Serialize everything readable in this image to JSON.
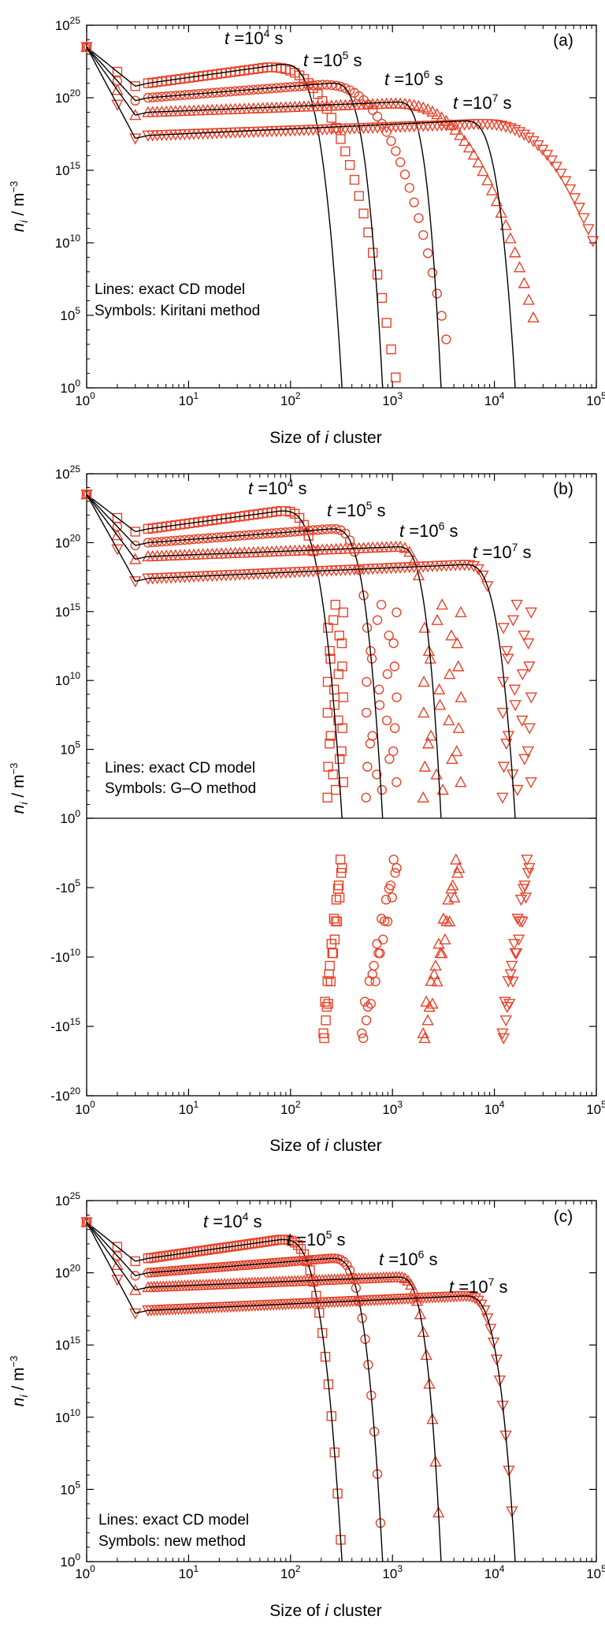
{
  "chart_data": [
    {
      "panel": "(a)",
      "type": "line+scatter",
      "xscale": "log",
      "yscale": "log",
      "xlim": [
        1,
        100000
      ],
      "ylim": [
        1,
        1e+25
      ],
      "xlabel_pre": "Size of ",
      "xlabel_var": "i",
      "xlabel_post": " cluster",
      "ylabel_var": "n",
      "ylabel_sub": "i",
      "ylabel_unit": " / m",
      "ylabel_exp": "−3",
      "xticks": [
        {
          "base": "10",
          "exp": "0"
        },
        {
          "base": "10",
          "exp": "1"
        },
        {
          "base": "10",
          "exp": "2"
        },
        {
          "base": "10",
          "exp": "3"
        },
        {
          "base": "10",
          "exp": "4"
        },
        {
          "base": "10",
          "exp": "5"
        }
      ],
      "yticks": [
        {
          "base": "10",
          "exp": "0"
        },
        {
          "base": "10",
          "exp": "5"
        },
        {
          "base": "10",
          "exp": "10"
        },
        {
          "base": "10",
          "exp": "15"
        },
        {
          "base": "10",
          "exp": "20"
        },
        {
          "base": "10",
          "exp": "25"
        }
      ],
      "annotation_lines": [
        "Lines: exact CD model",
        "Symbols: Kiritani method"
      ],
      "series": [
        {
          "time": {
            "t": "t",
            "eq": " =10",
            "exp": "4",
            "unit": " s"
          },
          "marker": "square",
          "exact": {
            "log_n0": 23.5,
            "log_nmin_at_i3": 20.8,
            "plateau_start_i": 4,
            "plateau_log_start": 21.0,
            "log_nmax": 22.3,
            "i_at_max": 80,
            "i_end": 320
          },
          "approx": {
            "i_peak": 60,
            "log_peak": 22.1,
            "i_end": 1100,
            "log_end": 0.3
          }
        },
        {
          "time": {
            "t": "t",
            "eq": " =10",
            "exp": "5",
            "unit": " s"
          },
          "marker": "circle",
          "exact": {
            "log_n0": 23.5,
            "log_nmin_at_i3": 19.8,
            "plateau_start_i": 4,
            "plateau_log_start": 20.0,
            "log_nmax": 21.0,
            "i_at_max": 250,
            "i_end": 800
          },
          "approx": {
            "i_peak": 200,
            "log_peak": 20.9,
            "i_end": 3500,
            "log_end": 2.7
          }
        },
        {
          "time": {
            "t": "t",
            "eq": " =10",
            "exp": "6",
            "unit": " s"
          },
          "marker": "triangle-up",
          "exact": {
            "log_n0": 23.5,
            "log_nmin_at_i3": 18.8,
            "plateau_start_i": 4,
            "plateau_log_start": 19.0,
            "log_nmax": 19.7,
            "i_at_max": 1100,
            "i_end": 3000
          },
          "approx": {
            "i_peak": 1000,
            "log_peak": 19.6,
            "i_end": 25000,
            "log_end": 4.4
          }
        },
        {
          "time": {
            "t": "t",
            "eq": " =10",
            "exp": "7",
            "unit": " s"
          },
          "marker": "triangle-down",
          "exact": {
            "log_n0": 23.5,
            "log_nmin_at_i3": 17.2,
            "plateau_start_i": 4,
            "plateau_log_start": 17.4,
            "log_nmax": 18.4,
            "i_at_max": 5000,
            "i_end": 16000
          },
          "approx": {
            "i_peak": 7000,
            "log_peak": 18.2,
            "i_end": 100000,
            "log_end": 9.5
          }
        }
      ]
    },
    {
      "panel": "(b)",
      "type": "line+scatter",
      "xscale": "log",
      "yscale": "symlog",
      "xlim": [
        1,
        100000
      ],
      "ylim_positive": [
        1,
        1e+25
      ],
      "ylim_negative": [
        -1,
        -1e+20
      ],
      "xlabel_pre": "Size of ",
      "xlabel_var": "i",
      "xlabel_post": " cluster",
      "ylabel_var": "n",
      "ylabel_sub": "i",
      "ylabel_unit": " / m",
      "ylabel_exp": "−3",
      "xticks": [
        {
          "base": "10",
          "exp": "0"
        },
        {
          "base": "10",
          "exp": "1"
        },
        {
          "base": "10",
          "exp": "2"
        },
        {
          "base": "10",
          "exp": "3"
        },
        {
          "base": "10",
          "exp": "4"
        },
        {
          "base": "10",
          "exp": "5"
        }
      ],
      "yticks_top": [
        {
          "base": "10",
          "exp": "0"
        },
        {
          "base": "10",
          "exp": "5"
        },
        {
          "base": "10",
          "exp": "10"
        },
        {
          "base": "10",
          "exp": "15"
        },
        {
          "base": "10",
          "exp": "20"
        },
        {
          "base": "10",
          "exp": "25"
        }
      ],
      "yticks_bottom": [
        {
          "base": "-10",
          "exp": "5"
        },
        {
          "base": "-10",
          "exp": "10"
        },
        {
          "base": "-10",
          "exp": "15"
        },
        {
          "base": "-10",
          "exp": "20"
        }
      ],
      "annotation_lines": [
        "Lines: exact CD model",
        "Symbols: G–O method"
      ],
      "series": [
        {
          "time": {
            "t": "t",
            "eq": " =10",
            "exp": "4",
            "unit": " s"
          },
          "marker": "square",
          "exact": {
            "log_n0": 23.5,
            "log_nmin_at_i3": 20.8,
            "plateau_start_i": 4,
            "plateau_log_start": 21.0,
            "log_nmax": 22.3,
            "i_at_max": 80,
            "i_end": 320
          },
          "approx_positive_range_i": [
            230,
            330
          ],
          "approx_negative_range_i": [
            210,
            320
          ]
        },
        {
          "time": {
            "t": "t",
            "eq": " =10",
            "exp": "5",
            "unit": " s"
          },
          "marker": "circle",
          "exact": {
            "log_n0": 23.5,
            "log_nmin_at_i3": 19.8,
            "plateau_start_i": 4,
            "plateau_log_start": 20.0,
            "log_nmax": 21.0,
            "i_at_max": 250,
            "i_end": 800
          },
          "approx_positive_range_i": [
            550,
            1100
          ],
          "approx_negative_range_i": [
            500,
            1100
          ]
        },
        {
          "time": {
            "t": "t",
            "eq": " =10",
            "exp": "6",
            "unit": " s"
          },
          "marker": "triangle-up",
          "exact": {
            "log_n0": 23.5,
            "log_nmin_at_i3": 18.8,
            "plateau_start_i": 4,
            "plateau_log_start": 19.0,
            "log_nmax": 19.7,
            "i_at_max": 1100,
            "i_end": 3000
          },
          "approx_positive_range_i": [
            2000,
            4700
          ],
          "approx_negative_range_i": [
            2000,
            4500
          ]
        },
        {
          "time": {
            "t": "t",
            "eq": " =10",
            "exp": "7",
            "unit": " s"
          },
          "marker": "triangle-down",
          "exact": {
            "log_n0": 23.5,
            "log_nmin_at_i3": 17.2,
            "plateau_start_i": 4,
            "plateau_log_start": 17.4,
            "log_nmax": 18.4,
            "i_at_max": 5000,
            "i_end": 16000
          },
          "approx_positive_range_i": [
            12000,
            23000
          ],
          "approx_negative_range_i": [
            12000,
            22000
          ]
        }
      ]
    },
    {
      "panel": "(c)",
      "type": "line+scatter",
      "xscale": "log",
      "yscale": "log",
      "xlim": [
        1,
        100000
      ],
      "ylim": [
        1,
        1e+25
      ],
      "xlabel_pre": "Size of ",
      "xlabel_var": "i",
      "xlabel_post": " cluster",
      "ylabel_var": "n",
      "ylabel_sub": "i",
      "ylabel_unit": " / m",
      "ylabel_exp": "−3",
      "xticks": [
        {
          "base": "10",
          "exp": "0"
        },
        {
          "base": "10",
          "exp": "1"
        },
        {
          "base": "10",
          "exp": "2"
        },
        {
          "base": "10",
          "exp": "3"
        },
        {
          "base": "10",
          "exp": "4"
        },
        {
          "base": "10",
          "exp": "5"
        }
      ],
      "yticks": [
        {
          "base": "10",
          "exp": "0"
        },
        {
          "base": "10",
          "exp": "5"
        },
        {
          "base": "10",
          "exp": "10"
        },
        {
          "base": "10",
          "exp": "15"
        },
        {
          "base": "10",
          "exp": "20"
        },
        {
          "base": "10",
          "exp": "25"
        }
      ],
      "annotation_lines": [
        "Lines: exact CD model",
        "Symbols: new method"
      ],
      "series": [
        {
          "time": {
            "t": "t",
            "eq": " =10",
            "exp": "4",
            "unit": " s"
          },
          "marker": "square",
          "exact": {
            "log_n0": 23.5,
            "log_nmin_at_i3": 20.8,
            "plateau_start_i": 4,
            "plateau_log_start": 21.0,
            "log_nmax": 22.3,
            "i_at_max": 80,
            "i_end": 320
          }
        },
        {
          "time": {
            "t": "t",
            "eq": " =10",
            "exp": "5",
            "unit": " s"
          },
          "marker": "circle",
          "exact": {
            "log_n0": 23.5,
            "log_nmin_at_i3": 19.8,
            "plateau_start_i": 4,
            "plateau_log_start": 20.0,
            "log_nmax": 21.0,
            "i_at_max": 250,
            "i_end": 800
          }
        },
        {
          "time": {
            "t": "t",
            "eq": " =10",
            "exp": "6",
            "unit": " s"
          },
          "marker": "triangle-up",
          "exact": {
            "log_n0": 23.5,
            "log_nmin_at_i3": 18.8,
            "plateau_start_i": 4,
            "plateau_log_start": 19.0,
            "log_nmax": 19.7,
            "i_at_max": 1100,
            "i_end": 3000
          }
        },
        {
          "time": {
            "t": "t",
            "eq": " =10",
            "exp": "7",
            "unit": " s"
          },
          "marker": "triangle-down",
          "exact": {
            "log_n0": 23.5,
            "log_nmin_at_i3": 17.2,
            "plateau_start_i": 4,
            "plateau_log_start": 17.4,
            "log_nmax": 18.4,
            "i_at_max": 5000,
            "i_end": 16000
          }
        }
      ]
    }
  ],
  "colors": {
    "symbol": "#e8422a",
    "exact_line": "#000000",
    "axes": "#000000"
  }
}
